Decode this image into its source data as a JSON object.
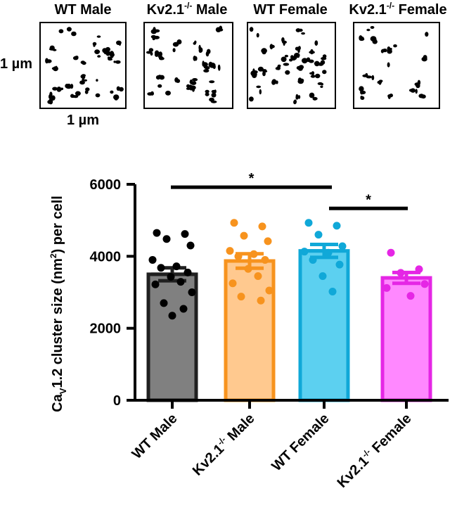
{
  "panels": {
    "items": [
      {
        "title": "WT Male",
        "density": 1.0
      },
      {
        "title_pre": "Kv2.1",
        "title_sup": "-/-",
        "title_post": " Male",
        "density": 0.9
      },
      {
        "title": "WT Female",
        "density": 1.3
      },
      {
        "title_pre": "Kv2.1",
        "title_sup": "-/-",
        "title_post": " Female",
        "density": 0.55
      }
    ],
    "scale_y_label": "1 µm",
    "scale_x_label": "1 µm"
  },
  "chart_data": {
    "type": "bar",
    "ylabel": {
      "pre": "Ca",
      "sub": "V",
      "mid": "1.2 cluster size (nm",
      "sup": "2",
      "post": ") per cell"
    },
    "ylim": [
      0,
      6000
    ],
    "yticks": [
      "0",
      "2000",
      "4000",
      "6000"
    ],
    "categories": [
      {
        "pre": "WT Male",
        "sup": "",
        "post": ""
      },
      {
        "pre": "Kv2.1",
        "sup": "-/-",
        "post": " Male"
      },
      {
        "pre": "WT Female",
        "sup": "",
        "post": ""
      },
      {
        "pre": "Kv2.1",
        "sup": "-/-",
        "post": " Female"
      }
    ],
    "values": [
      3500,
      3870,
      4150,
      3400
    ],
    "sem": [
      180,
      200,
      180,
      150
    ],
    "colors": {
      "fill": [
        "#808080",
        "#ffc98f",
        "#5cd0f0",
        "#ff88ff"
      ],
      "stroke": [
        "#202020",
        "#f7931e",
        "#10a8d8",
        "#e526e5"
      ],
      "points": [
        "#000000",
        "#f7931e",
        "#10a8d8",
        "#e526e5"
      ]
    },
    "points": [
      [
        4650,
        4620,
        4480,
        4300,
        3900,
        3720,
        3680,
        3550,
        3430,
        3290,
        3220,
        3000,
        2700,
        2540,
        2350
      ],
      [
        4930,
        4830,
        4570,
        4420,
        4150,
        4060,
        4000,
        3900,
        3650,
        3450,
        3250,
        3050,
        2880,
        2770
      ],
      [
        4930,
        4850,
        4600,
        4280,
        4130,
        4100,
        3900,
        3770,
        3450,
        3020
      ],
      [
        4100,
        3640,
        3540,
        3230,
        3120,
        2900
      ]
    ],
    "significance": [
      {
        "from": 0,
        "to": 2,
        "label": "*",
        "y": 5920
      },
      {
        "from": 2,
        "to": 3,
        "label": "*",
        "y": 5330
      }
    ]
  }
}
